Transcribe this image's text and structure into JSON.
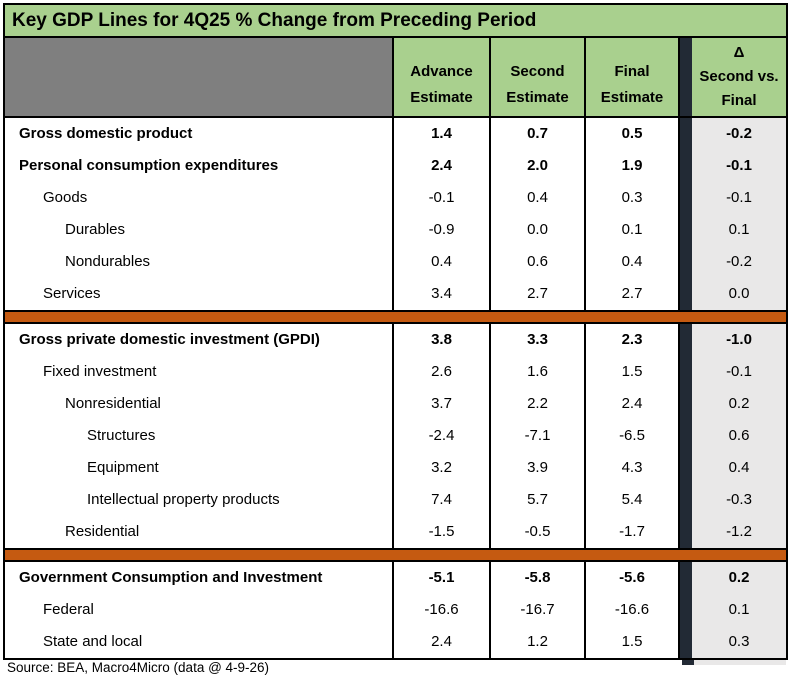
{
  "colors": {
    "header_green": "#a9d08e",
    "corner_gray": "#7f7f7f",
    "divider_orange": "#c55a11",
    "separator_dark": "#222a35",
    "delta_column_gray": "#e9e8e8",
    "border_black": "#000000"
  },
  "chart_data": {
    "type": "table",
    "title": "Key GDP Lines for 4Q25 % Change from Preceding Period",
    "estimate_columns": [
      {
        "line1": "Advance",
        "line2": "Estimate"
      },
      {
        "line1": "Second",
        "line2": "Estimate"
      },
      {
        "line1": "Final",
        "line2": "Estimate"
      }
    ],
    "delta_column": {
      "line1": "Δ",
      "line2": "Second vs.",
      "line3": "Final"
    },
    "value_column_keys": [
      "advance-value",
      "second-value",
      "final-value",
      "delta-value"
    ],
    "sections": [
      {
        "rows": [
          {
            "label": "Gross domestic product",
            "indent": 0,
            "bold": true,
            "values": [
              "1.4",
              "0.7",
              "0.5",
              "-0.2"
            ]
          },
          {
            "label": "Personal consumption expenditures",
            "indent": 0,
            "bold": true,
            "values": [
              "2.4",
              "2.0",
              "1.9",
              "-0.1"
            ]
          },
          {
            "label": "Goods",
            "indent": 1,
            "bold": false,
            "values": [
              "-0.1",
              "0.4",
              "0.3",
              "-0.1"
            ]
          },
          {
            "label": "Durables",
            "indent": 2,
            "bold": false,
            "values": [
              "-0.9",
              "0.0",
              "0.1",
              "0.1"
            ]
          },
          {
            "label": "Nondurables",
            "indent": 2,
            "bold": false,
            "values": [
              "0.4",
              "0.6",
              "0.4",
              "-0.2"
            ]
          },
          {
            "label": "Services",
            "indent": 1,
            "bold": false,
            "values": [
              "3.4",
              "2.7",
              "2.7",
              "0.0"
            ]
          }
        ]
      },
      {
        "rows": [
          {
            "label": "Gross private domestic investment (GPDI)",
            "indent": 0,
            "bold": true,
            "values": [
              "3.8",
              "3.3",
              "2.3",
              "-1.0"
            ]
          },
          {
            "label": "Fixed investment",
            "indent": 1,
            "bold": false,
            "values": [
              "2.6",
              "1.6",
              "1.5",
              "-0.1"
            ]
          },
          {
            "label": "Nonresidential",
            "indent": 2,
            "bold": false,
            "values": [
              "3.7",
              "2.2",
              "2.4",
              "0.2"
            ]
          },
          {
            "label": "Structures",
            "indent": 3,
            "bold": false,
            "values": [
              "-2.4",
              "-7.1",
              "-6.5",
              "0.6"
            ]
          },
          {
            "label": "Equipment",
            "indent": 3,
            "bold": false,
            "values": [
              "3.2",
              "3.9",
              "4.3",
              "0.4"
            ]
          },
          {
            "label": "Intellectual property products",
            "indent": 3,
            "bold": false,
            "values": [
              "7.4",
              "5.7",
              "5.4",
              "-0.3"
            ]
          },
          {
            "label": "Residential",
            "indent": 2,
            "bold": false,
            "values": [
              "-1.5",
              "-0.5",
              "-1.7",
              "-1.2"
            ]
          }
        ]
      },
      {
        "rows": [
          {
            "label": "Government Consumption and Investment",
            "indent": 0,
            "bold": true,
            "values": [
              "-5.1",
              "-5.8",
              "-5.6",
              "0.2"
            ]
          },
          {
            "label": "Federal",
            "indent": 1,
            "bold": false,
            "values": [
              "-16.6",
              "-16.7",
              "-16.6",
              "0.1"
            ]
          },
          {
            "label": "State and local",
            "indent": 1,
            "bold": false,
            "values": [
              "2.4",
              "1.2",
              "1.5",
              "0.3"
            ]
          }
        ]
      }
    ],
    "source": "Source: BEA, Macro4Micro (data @ 4-9-26)"
  }
}
